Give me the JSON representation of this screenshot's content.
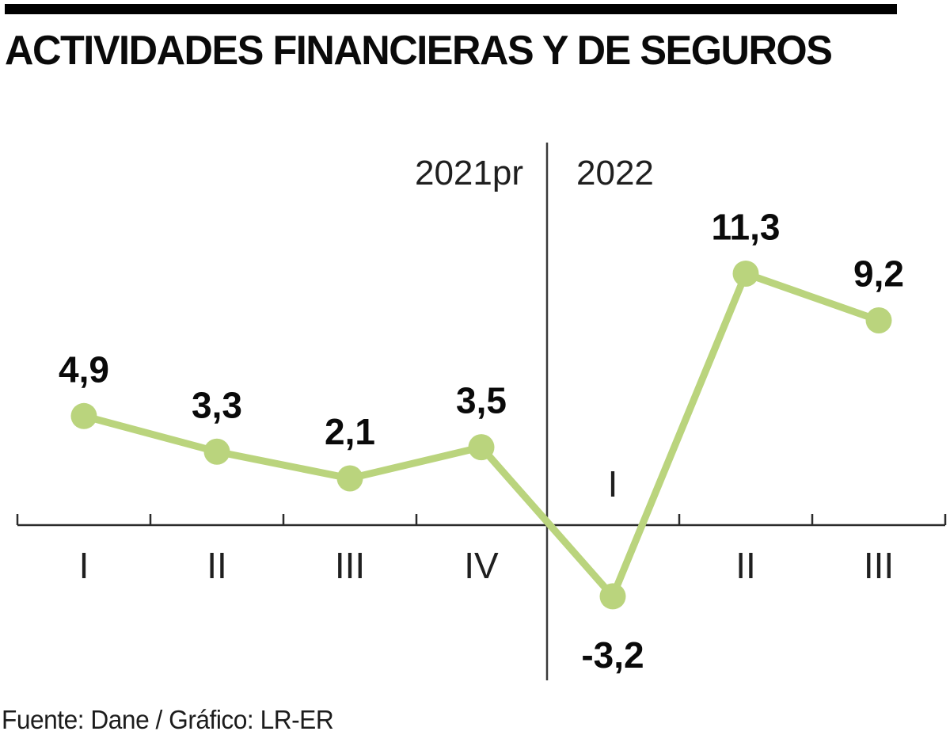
{
  "title_bar": {
    "title": "ACTIVIDADES FINANCIERAS Y DE SEGUROS"
  },
  "footer": {
    "source_credit": "Fuente: Dane / Gráfico: LR-ER"
  },
  "colors": {
    "series_green": "#bad47d",
    "axis": "#2b2b2b",
    "divider": "#3a3a3a",
    "label_text": "#0a0a0a",
    "title_rule": "#000000"
  },
  "chart_data": {
    "type": "line",
    "title": "ACTIVIDADES FINANCIERAS Y DE SEGUROS",
    "period_labels": [
      "2021pr",
      "2022"
    ],
    "categories": [
      "I",
      "II",
      "III",
      "IV",
      "I",
      "II",
      "III"
    ],
    "values": [
      4.9,
      3.3,
      2.1,
      3.5,
      -3.2,
      11.3,
      9.2
    ],
    "value_labels": [
      "4,9",
      "3,3",
      "2,1",
      "3,5",
      "-3,2",
      "11,3",
      "9,2"
    ],
    "series": [
      {
        "name": "Actividades financieras y de seguros",
        "values": [
          4.9,
          3.3,
          2.1,
          3.5,
          -3.2,
          11.3,
          9.2
        ]
      }
    ],
    "baseline": 0,
    "grid": false,
    "legend": false,
    "marker": "circle",
    "line_color": "#bad47d",
    "source": "Fuente: Dane / Gráfico: LR-ER"
  }
}
